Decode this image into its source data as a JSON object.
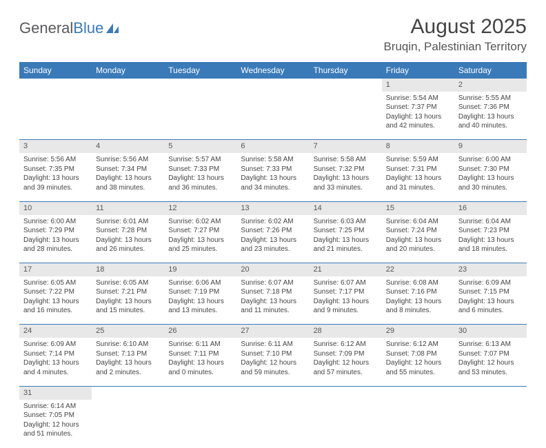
{
  "logo": {
    "text1": "General",
    "text2": "Blue"
  },
  "title": "August 2025",
  "location": "Bruqin, Palestinian Territory",
  "day_headers": [
    "Sunday",
    "Monday",
    "Tuesday",
    "Wednesday",
    "Thursday",
    "Friday",
    "Saturday"
  ],
  "colors": {
    "header_bg": "#3a7ab8",
    "header_fg": "#ffffff",
    "daynum_bg": "#e8e8e8",
    "rule": "#3a7ab8",
    "text": "#444444",
    "logo_gray": "#58595b",
    "logo_blue": "#3a7ab8"
  },
  "first_weekday_index": 5,
  "days": [
    {
      "n": 1,
      "sr": "5:54 AM",
      "ss": "7:37 PM",
      "dl": "13 hours and 42 minutes."
    },
    {
      "n": 2,
      "sr": "5:55 AM",
      "ss": "7:36 PM",
      "dl": "13 hours and 40 minutes."
    },
    {
      "n": 3,
      "sr": "5:56 AM",
      "ss": "7:35 PM",
      "dl": "13 hours and 39 minutes."
    },
    {
      "n": 4,
      "sr": "5:56 AM",
      "ss": "7:34 PM",
      "dl": "13 hours and 38 minutes."
    },
    {
      "n": 5,
      "sr": "5:57 AM",
      "ss": "7:33 PM",
      "dl": "13 hours and 36 minutes."
    },
    {
      "n": 6,
      "sr": "5:58 AM",
      "ss": "7:33 PM",
      "dl": "13 hours and 34 minutes."
    },
    {
      "n": 7,
      "sr": "5:58 AM",
      "ss": "7:32 PM",
      "dl": "13 hours and 33 minutes."
    },
    {
      "n": 8,
      "sr": "5:59 AM",
      "ss": "7:31 PM",
      "dl": "13 hours and 31 minutes."
    },
    {
      "n": 9,
      "sr": "6:00 AM",
      "ss": "7:30 PM",
      "dl": "13 hours and 30 minutes."
    },
    {
      "n": 10,
      "sr": "6:00 AM",
      "ss": "7:29 PM",
      "dl": "13 hours and 28 minutes."
    },
    {
      "n": 11,
      "sr": "6:01 AM",
      "ss": "7:28 PM",
      "dl": "13 hours and 26 minutes."
    },
    {
      "n": 12,
      "sr": "6:02 AM",
      "ss": "7:27 PM",
      "dl": "13 hours and 25 minutes."
    },
    {
      "n": 13,
      "sr": "6:02 AM",
      "ss": "7:26 PM",
      "dl": "13 hours and 23 minutes."
    },
    {
      "n": 14,
      "sr": "6:03 AM",
      "ss": "7:25 PM",
      "dl": "13 hours and 21 minutes."
    },
    {
      "n": 15,
      "sr": "6:04 AM",
      "ss": "7:24 PM",
      "dl": "13 hours and 20 minutes."
    },
    {
      "n": 16,
      "sr": "6:04 AM",
      "ss": "7:23 PM",
      "dl": "13 hours and 18 minutes."
    },
    {
      "n": 17,
      "sr": "6:05 AM",
      "ss": "7:22 PM",
      "dl": "13 hours and 16 minutes."
    },
    {
      "n": 18,
      "sr": "6:05 AM",
      "ss": "7:21 PM",
      "dl": "13 hours and 15 minutes."
    },
    {
      "n": 19,
      "sr": "6:06 AM",
      "ss": "7:19 PM",
      "dl": "13 hours and 13 minutes."
    },
    {
      "n": 20,
      "sr": "6:07 AM",
      "ss": "7:18 PM",
      "dl": "13 hours and 11 minutes."
    },
    {
      "n": 21,
      "sr": "6:07 AM",
      "ss": "7:17 PM",
      "dl": "13 hours and 9 minutes."
    },
    {
      "n": 22,
      "sr": "6:08 AM",
      "ss": "7:16 PM",
      "dl": "13 hours and 8 minutes."
    },
    {
      "n": 23,
      "sr": "6:09 AM",
      "ss": "7:15 PM",
      "dl": "13 hours and 6 minutes."
    },
    {
      "n": 24,
      "sr": "6:09 AM",
      "ss": "7:14 PM",
      "dl": "13 hours and 4 minutes."
    },
    {
      "n": 25,
      "sr": "6:10 AM",
      "ss": "7:13 PM",
      "dl": "13 hours and 2 minutes."
    },
    {
      "n": 26,
      "sr": "6:11 AM",
      "ss": "7:11 PM",
      "dl": "13 hours and 0 minutes."
    },
    {
      "n": 27,
      "sr": "6:11 AM",
      "ss": "7:10 PM",
      "dl": "12 hours and 59 minutes."
    },
    {
      "n": 28,
      "sr": "6:12 AM",
      "ss": "7:09 PM",
      "dl": "12 hours and 57 minutes."
    },
    {
      "n": 29,
      "sr": "6:12 AM",
      "ss": "7:08 PM",
      "dl": "12 hours and 55 minutes."
    },
    {
      "n": 30,
      "sr": "6:13 AM",
      "ss": "7:07 PM",
      "dl": "12 hours and 53 minutes."
    },
    {
      "n": 31,
      "sr": "6:14 AM",
      "ss": "7:05 PM",
      "dl": "12 hours and 51 minutes."
    }
  ],
  "labels": {
    "sunrise": "Sunrise:",
    "sunset": "Sunset:",
    "daylight": "Daylight:"
  }
}
